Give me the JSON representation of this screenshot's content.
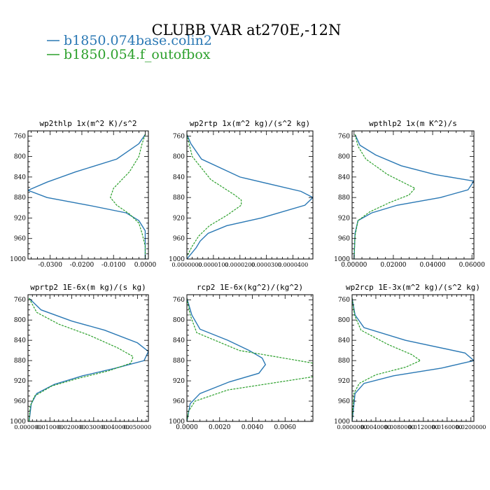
{
  "figure": {
    "title": "CLUBB VAR at270E,-12N",
    "legend": [
      {
        "label": "b1850.074base.colin2",
        "color": "#2a78b4"
      },
      {
        "label": "b1850.054.f_outofbox",
        "color": "#2ca02c"
      }
    ]
  },
  "chart_data": [
    {
      "type": "line",
      "title": "wp2thlp   1x(m^2 K)/s^2",
      "ylim": [
        1000,
        750
      ],
      "yticks": [
        760,
        800,
        840,
        880,
        920,
        960,
        1000
      ],
      "ytick_labels": [
        "760",
        "800",
        "840",
        "880",
        "920",
        "960",
        "1000"
      ],
      "xlim": [
        -0.037,
        0.001
      ],
      "xticks": [
        -0.03,
        -0.02,
        -0.01,
        0.0
      ],
      "xtick_labels": [
        "-0.0300",
        "-0.0200",
        "-0.0100",
        "0.0000"
      ],
      "series": [
        {
          "name": "b1850.074base.colin2",
          "color": "#2a78b4",
          "dash": false,
          "points": [
            [
              0.0,
              757
            ],
            [
              -0.002,
              775
            ],
            [
              -0.009,
              805
            ],
            [
              -0.022,
              830
            ],
            [
              -0.031,
              850
            ],
            [
              -0.037,
              866
            ],
            [
              -0.031,
              880
            ],
            [
              -0.018,
              895
            ],
            [
              -0.006,
              910
            ],
            [
              -0.002,
              925
            ],
            [
              0.0,
              945
            ],
            [
              0.0,
              970
            ],
            [
              0.0,
              1000
            ]
          ]
        },
        {
          "name": "b1850.054.f_outofbox",
          "color": "#2ca02c",
          "dash": true,
          "points": [
            [
              0.0,
              757
            ],
            [
              -0.001,
              775
            ],
            [
              -0.002,
              800
            ],
            [
              -0.005,
              830
            ],
            [
              -0.01,
              862
            ],
            [
              -0.011,
              880
            ],
            [
              -0.009,
              895
            ],
            [
              -0.005,
              912
            ],
            [
              -0.002,
              930
            ],
            [
              -0.001,
              950
            ],
            [
              0.0,
              975
            ],
            [
              0.0,
              1000
            ]
          ]
        }
      ]
    },
    {
      "type": "line",
      "title": "wp2rtp   1x(m^2 kg)/(s^2 kg)",
      "ylim": [
        1000,
        750
      ],
      "yticks": [
        760,
        800,
        840,
        880,
        920,
        960,
        1000
      ],
      "ytick_labels": [
        "760",
        "800",
        "840",
        "880",
        "920",
        "960",
        "1000"
      ],
      "xlim": [
        0.0,
        4.75e-05
      ],
      "xticks": [
        0.0,
        1e-05,
        2e-05,
        3e-05,
        4e-05
      ],
      "xtick_labels": [
        "0.0000000",
        "0.0000100",
        "0.0000200",
        "0.0000300",
        "0.0000400"
      ],
      "series": [
        {
          "name": "b1850.074base.colin2",
          "color": "#2a78b4",
          "dash": false,
          "points": [
            [
              0.0,
              757
            ],
            [
              1.5e-06,
              775
            ],
            [
              5.5e-06,
              805
            ],
            [
              2e-05,
              840
            ],
            [
              4.3e-05,
              868
            ],
            [
              4.75e-05,
              880
            ],
            [
              4.45e-05,
              895
            ],
            [
              2.8e-05,
              920
            ],
            [
              1.5e-05,
              935
            ],
            [
              8e-06,
              950
            ],
            [
              5e-06,
              965
            ],
            [
              3.5e-06,
              978
            ],
            [
              0.0,
              1000
            ]
          ]
        },
        {
          "name": "b1850.054.f_outofbox",
          "color": "#2ca02c",
          "dash": true,
          "points": [
            [
              0.0,
              757
            ],
            [
              2e-06,
              800
            ],
            [
              9e-06,
              845
            ],
            [
              1.8e-05,
              875
            ],
            [
              2.05e-05,
              885
            ],
            [
              2.05e-05,
              895
            ],
            [
              1.5e-05,
              915
            ],
            [
              8.5e-06,
              935
            ],
            [
              4.5e-06,
              955
            ],
            [
              2e-06,
              975
            ],
            [
              0.0,
              995
            ]
          ]
        }
      ]
    },
    {
      "type": "line",
      "title": "wpthlp2   1x(m K^2)/s",
      "ylim": [
        1000,
        750
      ],
      "yticks": [
        760,
        800,
        840,
        880,
        920,
        960,
        1000
      ],
      "ytick_labels": [
        "760",
        "800",
        "840",
        "880",
        "920",
        "960",
        "1000"
      ],
      "xlim": [
        -0.001,
        0.061
      ],
      "xticks": [
        0.0,
        0.02,
        0.04,
        0.06
      ],
      "xtick_labels": [
        "0.00000",
        "0.02000",
        "0.04000",
        "0.06000"
      ],
      "series": [
        {
          "name": "b1850.074base.colin2",
          "color": "#2a78b4",
          "dash": false,
          "points": [
            [
              0.0005,
              757
            ],
            [
              0.003,
              778
            ],
            [
              0.011,
              797
            ],
            [
              0.024,
              818
            ],
            [
              0.041,
              835
            ],
            [
              0.061,
              848
            ],
            [
              0.058,
              865
            ],
            [
              0.044,
              880
            ],
            [
              0.022,
              895
            ],
            [
              0.009,
              910
            ],
            [
              0.002,
              925
            ],
            [
              0.0005,
              950
            ],
            [
              0.0,
              1000
            ]
          ]
        },
        {
          "name": "b1850.054.f_outofbox",
          "color": "#2ca02c",
          "dash": true,
          "points": [
            [
              0.0005,
              757
            ],
            [
              0.002,
              780
            ],
            [
              0.006,
              805
            ],
            [
              0.017,
              835
            ],
            [
              0.031,
              862
            ],
            [
              0.028,
              875
            ],
            [
              0.018,
              890
            ],
            [
              0.008,
              908
            ],
            [
              0.002,
              925
            ],
            [
              0.0005,
              955
            ],
            [
              0.0,
              1000
            ]
          ]
        }
      ]
    },
    {
      "type": "line",
      "title": "wprtp2   1E-6x(m kg)/(s kg)",
      "ylim": [
        1000,
        750
      ],
      "yticks": [
        760,
        800,
        840,
        880,
        920,
        960,
        1000
      ],
      "ytick_labels": [
        "760",
        "800",
        "840",
        "880",
        "920",
        "960",
        "1000"
      ],
      "xlim": [
        0.0,
        0.055
      ],
      "xticks": [
        0.0,
        0.01,
        0.02,
        0.03,
        0.04,
        0.05
      ],
      "xtick_labels": [
        "0.000000",
        "0.010000",
        "0.020000",
        "0.030000",
        "0.040000",
        "0.050000"
      ],
      "series": [
        {
          "name": "b1850.074base.colin2",
          "color": "#2a78b4",
          "dash": false,
          "points": [
            [
              0.0005,
              757
            ],
            [
              0.006,
              780
            ],
            [
              0.02,
              802
            ],
            [
              0.035,
              820
            ],
            [
              0.05,
              845
            ],
            [
              0.055,
              862
            ],
            [
              0.053,
              880
            ],
            [
              0.04,
              895
            ],
            [
              0.025,
              910
            ],
            [
              0.012,
              927
            ],
            [
              0.004,
              945
            ],
            [
              0.0015,
              965
            ],
            [
              0.0005,
              1000
            ]
          ]
        },
        {
          "name": "b1850.054.f_outofbox",
          "color": "#2ca02c",
          "dash": true,
          "points": [
            [
              0.0005,
              757
            ],
            [
              0.004,
              785
            ],
            [
              0.014,
              808
            ],
            [
              0.028,
              830
            ],
            [
              0.041,
              855
            ],
            [
              0.048,
              872
            ],
            [
              0.047,
              885
            ],
            [
              0.037,
              900
            ],
            [
              0.023,
              915
            ],
            [
              0.011,
              930
            ],
            [
              0.003,
              950
            ],
            [
              0.001,
              970
            ],
            [
              0.0005,
              1000
            ]
          ]
        }
      ]
    },
    {
      "type": "line",
      "title": "rcp2   1E-6x(kg^2)/(kg^2)",
      "ylim": [
        1000,
        750
      ],
      "yticks": [
        760,
        800,
        840,
        880,
        920,
        960,
        1000
      ],
      "ytick_labels": [
        "760",
        "800",
        "840",
        "880",
        "920",
        "960",
        "1000"
      ],
      "xlim": [
        0.0,
        0.0077
      ],
      "xticks": [
        0.0,
        0.002,
        0.004,
        0.006
      ],
      "xtick_labels": [
        "0.0000",
        "0.0020",
        "0.0040",
        "0.0060"
      ],
      "series": [
        {
          "name": "b1850.074base.colin2",
          "color": "#2a78b4",
          "dash": false,
          "points": [
            [
              0.0,
              757
            ],
            [
              0.0003,
              790
            ],
            [
              0.0008,
              818
            ],
            [
              0.0025,
              840
            ],
            [
              0.0038,
              860
            ],
            [
              0.0046,
              875
            ],
            [
              0.0048,
              888
            ],
            [
              0.0044,
              905
            ],
            [
              0.0026,
              922
            ],
            [
              0.0008,
              945
            ],
            [
              0.0002,
              965
            ],
            [
              0.0,
              1000
            ]
          ]
        },
        {
          "name": "b1850.054.f_outofbox",
          "color": "#2ca02c",
          "dash": true,
          "points": [
            [
              0.0,
              757
            ],
            [
              0.0002,
              790
            ],
            [
              0.0006,
              825
            ],
            [
              0.0032,
              860
            ],
            [
              0.0077,
              885
            ],
            [
              0.0077,
              912
            ],
            [
              0.0025,
              938
            ],
            [
              0.0005,
              960
            ],
            [
              0.0001,
              980
            ],
            [
              0.0,
              1000
            ]
          ]
        }
      ]
    },
    {
      "type": "line",
      "title": "wp2rcp   1E-3x(m^2 kg)/(s^2 kg)",
      "ylim": [
        1000,
        750
      ],
      "yticks": [
        760,
        800,
        840,
        880,
        920,
        960,
        1000
      ],
      "ytick_labels": [
        "760",
        "800",
        "840",
        "880",
        "920",
        "960",
        "1000"
      ],
      "xlim": [
        0.0,
        0.0205
      ],
      "xticks": [
        0.0,
        0.004,
        0.008,
        0.012,
        0.016,
        0.02
      ],
      "xtick_labels": [
        "0.0000000",
        "0.0040000",
        "0.0080000",
        "0.0120000",
        "0.0160000",
        "0.0200000"
      ],
      "series": [
        {
          "name": "b1850.074base.colin2",
          "color": "#2a78b4",
          "dash": false,
          "points": [
            [
              0.0,
              757
            ],
            [
              0.0005,
              790
            ],
            [
              0.002,
              815
            ],
            [
              0.009,
              840
            ],
            [
              0.019,
              865
            ],
            [
              0.0205,
              880
            ],
            [
              0.015,
              895
            ],
            [
              0.007,
              910
            ],
            [
              0.002,
              925
            ],
            [
              0.0005,
              945
            ],
            [
              0.0,
              1000
            ]
          ]
        },
        {
          "name": "b1850.054.f_outofbox",
          "color": "#2ca02c",
          "dash": true,
          "points": [
            [
              0.0,
              757
            ],
            [
              0.0004,
              790
            ],
            [
              0.0015,
              820
            ],
            [
              0.006,
              848
            ],
            [
              0.01,
              868
            ],
            [
              0.0115,
              880
            ],
            [
              0.009,
              893
            ],
            [
              0.004,
              908
            ],
            [
              0.0012,
              925
            ],
            [
              0.0003,
              945
            ],
            [
              0.0,
              1000
            ]
          ]
        }
      ]
    }
  ]
}
